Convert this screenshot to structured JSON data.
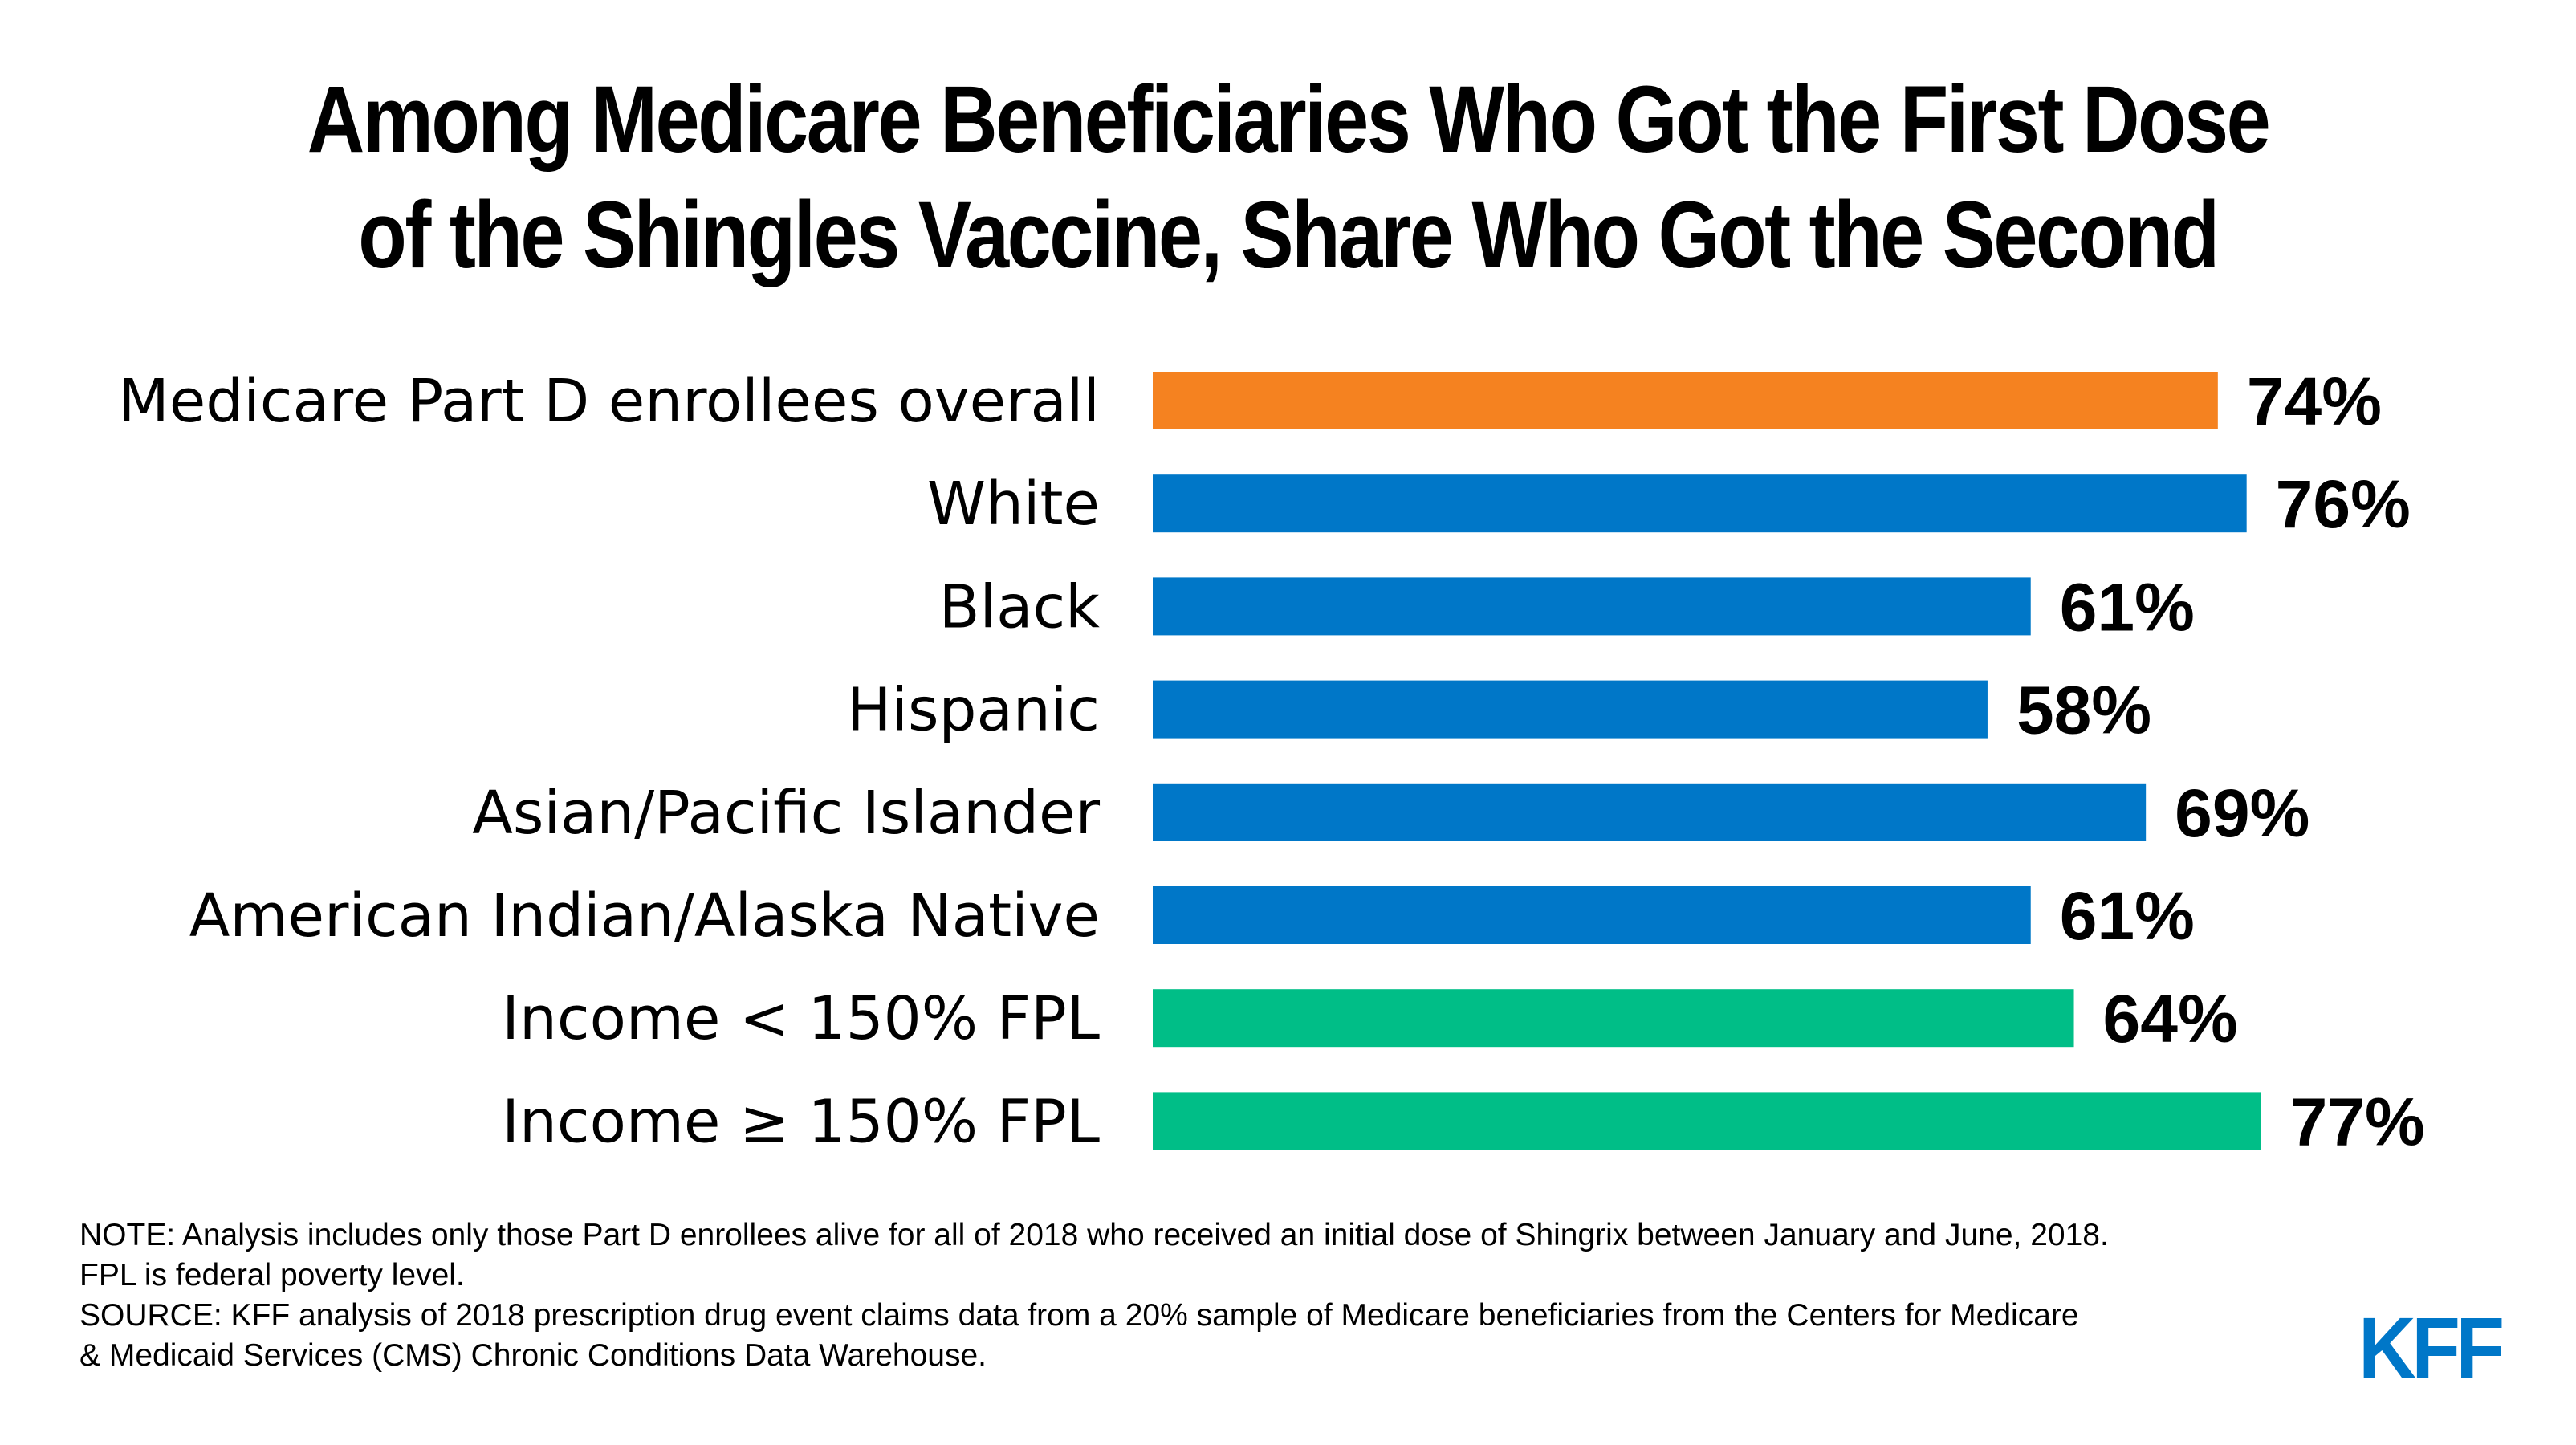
{
  "title_lines": [
    "Among Medicare Beneficiaries Who Got the First Dose",
    "of the Shingles Vaccine, Share Who Got the Second"
  ],
  "chart_data": {
    "type": "bar",
    "orientation": "horizontal",
    "title": "Among Medicare Beneficiaries Who Got the First Dose of the Shingles Vaccine, Share Who Got the Second",
    "categories": [
      "Medicare Part D enrollees overall",
      "White",
      "Black",
      "Hispanic",
      "Asian/Pacific Islander",
      "American Indian/Alaska Native",
      "Income < 150% FPL",
      "Income ≥ 150% FPL"
    ],
    "values": [
      74,
      76,
      61,
      58,
      69,
      61,
      64,
      77
    ],
    "value_labels": [
      "74%",
      "76%",
      "61%",
      "58%",
      "69%",
      "61%",
      "64%",
      "77%"
    ],
    "colors": [
      "#F58220",
      "#0077C8",
      "#0077C8",
      "#0077C8",
      "#0077C8",
      "#0077C8",
      "#00BE87",
      "#00BE87"
    ],
    "xlabel": "",
    "ylabel": "",
    "xlim": [
      0,
      100
    ],
    "grid": false,
    "legend": "none"
  },
  "footer": {
    "note_lines": [
      "NOTE: Analysis includes only those Part D enrollees alive for all of 2018 who received an initial dose of Shingrix between January and June, 2018.",
      "FPL is federal poverty level."
    ],
    "source_lines": [
      "SOURCE: KFF analysis of 2018 prescription drug event claims data from a 20% sample of Medicare beneficiaries from the Centers for Medicare",
      "& Medicaid Services (CMS) Chronic Conditions Data Warehouse."
    ],
    "logo": "KFF",
    "logo_color": "#0077C8"
  }
}
